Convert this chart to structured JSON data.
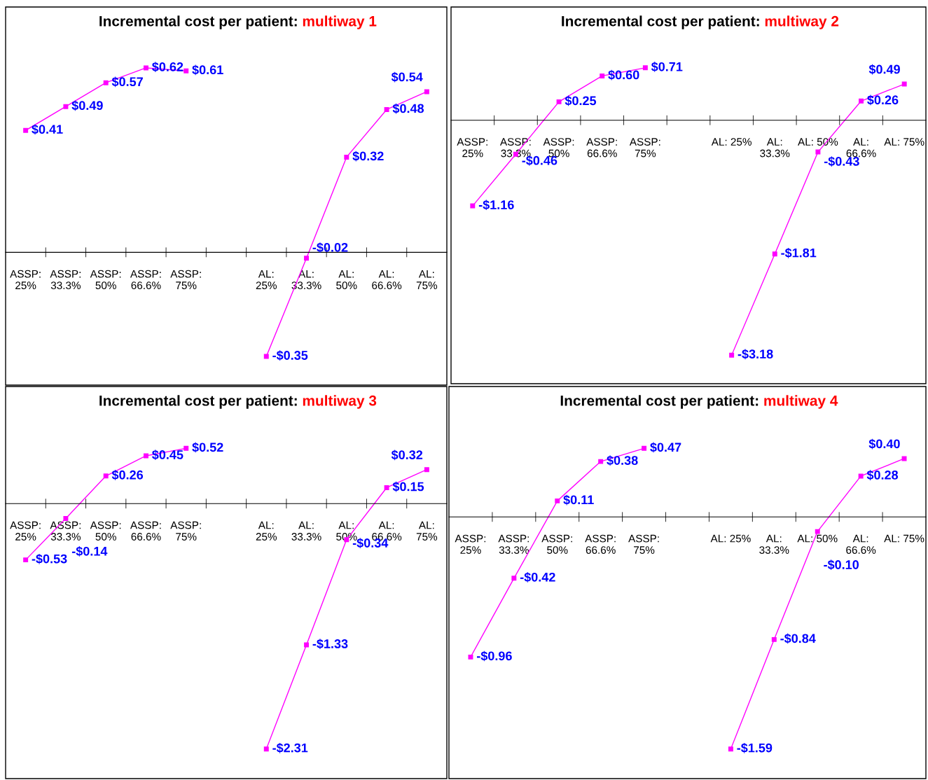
{
  "chart_data": [
    {
      "type": "line",
      "title": "Incremental cost per patient:",
      "subtitle": "multiway 1",
      "categories": [
        "ASSP:\n25%",
        "ASSP:\n33.3%",
        "ASSP:\n50%",
        "ASSP:\n66.6%",
        "ASSP:\n75%",
        null,
        "AL:\n25%",
        "AL:\n33.3%",
        "AL:\n50%",
        "AL:\n66.6%",
        "AL:\n75%"
      ],
      "series": [
        {
          "color": "#ff00ff",
          "values": [
            0.41,
            0.49,
            0.57,
            0.62,
            0.61,
            null,
            -0.35,
            -0.02,
            0.32,
            0.48,
            0.54
          ],
          "value_labels": [
            "$0.41",
            "$0.49",
            "$0.57",
            "$0.62",
            "$0.61",
            null,
            "-$0.35",
            "-$0.02",
            "$0.32",
            "$0.48",
            "$0.54"
          ]
        }
      ],
      "marker": "square",
      "line_style": "solid",
      "grid": false,
      "legend": false,
      "tick_labels": "x"
    },
    {
      "type": "line",
      "title": "Incremental cost per patient:",
      "subtitle": "multiway 2",
      "categories": [
        "ASSP:\n25%",
        "ASSP:\n33.3%",
        "ASSP:\n50%",
        "ASSP:\n66.6%",
        "ASSP:\n75%",
        null,
        "AL: 25%",
        "AL:\n33.3%",
        "AL: 50%",
        "AL:\n66.6%",
        "AL: 75%"
      ],
      "series": [
        {
          "color": "#ff00ff",
          "values": [
            -1.16,
            -0.46,
            0.25,
            0.6,
            0.71,
            null,
            -3.18,
            -1.81,
            -0.43,
            0.26,
            0.49
          ],
          "value_labels": [
            "-$1.16",
            "-$0.46",
            "$0.25",
            "$0.60",
            "$0.71",
            null,
            "-$3.18",
            "-$1.81",
            "-$0.43",
            "$0.26",
            "$0.49"
          ]
        }
      ],
      "marker": "square",
      "line_style": "solid",
      "grid": false,
      "legend": false,
      "tick_labels": "x"
    },
    {
      "type": "line",
      "title": "Incremental cost per patient:",
      "subtitle": "multiway 3",
      "categories": [
        "ASSP:\n25%",
        "ASSP:\n33.3%",
        "ASSP:\n50%",
        "ASSP:\n66.6%",
        "ASSP:\n75%",
        null,
        "AL:\n25%",
        "AL:\n33.3%",
        "AL:\n50%",
        "AL:\n66.6%",
        "AL:\n75%"
      ],
      "series": [
        {
          "color": "#ff00ff",
          "values": [
            -0.53,
            -0.14,
            0.26,
            0.45,
            0.52,
            null,
            -2.31,
            -1.33,
            -0.34,
            0.15,
            0.32
          ],
          "value_labels": [
            "-$0.53",
            "-$0.14",
            "$0.26",
            "$0.45",
            "$0.52",
            null,
            "-$2.31",
            "-$1.33",
            "-$0.34",
            "$0.15",
            "$0.32"
          ]
        }
      ],
      "marker": "square",
      "line_style": "solid",
      "grid": false,
      "legend": false,
      "tick_labels": "x"
    },
    {
      "type": "line",
      "title": "Incremental cost per patient:",
      "subtitle": "multiway 4",
      "categories": [
        "ASSP:\n25%",
        "ASSP:\n33.3%",
        "ASSP:\n50%",
        "ASSP:\n66.6%",
        "ASSP:\n75%",
        null,
        "AL: 25%",
        "AL:\n33.3%",
        "AL: 50%",
        "AL:\n66.6%",
        "AL: 75%"
      ],
      "series": [
        {
          "color": "#ff00ff",
          "values": [
            -0.96,
            -0.42,
            0.11,
            0.38,
            0.47,
            null,
            -1.59,
            -0.84,
            -0.1,
            0.28,
            0.4
          ],
          "value_labels": [
            "-$0.96",
            "-$0.42",
            "$0.11",
            "$0.38",
            "$0.47",
            null,
            "-$1.59",
            "-$0.84",
            "-$0.10",
            "$0.28",
            "$0.40"
          ]
        }
      ],
      "marker": "square",
      "line_style": "solid",
      "grid": false,
      "legend": false,
      "tick_labels": "x"
    }
  ]
}
